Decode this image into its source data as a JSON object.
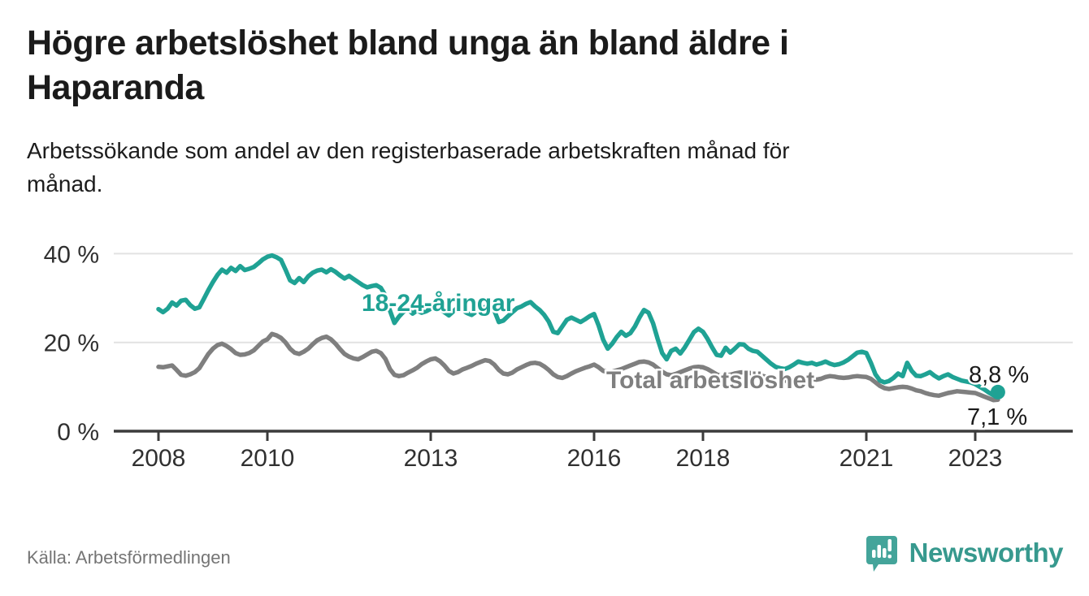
{
  "header": {
    "title": "Högre arbetslöshet bland unga än bland äldre i Haparanda",
    "subtitle": "Arbetssökande som andel av den registerbaserade arbetskraften månad för månad."
  },
  "footer": {
    "source": "Källa: Arbetsförmedlingen",
    "brand": "Newsworthy"
  },
  "colors": {
    "youth_line": "#1fa294",
    "total_line": "#7f7f7f",
    "axis": "#3b3b3b",
    "gridline": "#e2e2e2",
    "value_label": "#1a1a1a",
    "logo_teal": "#44a49a",
    "brand_text_teal": "#37998e"
  },
  "chart_data": {
    "type": "line",
    "title": "Högre arbetslöshet bland unga än bland äldre i Haparanda",
    "subtitle": "Arbetssökande som andel av den registerbaserade arbetskraften månad för månad.",
    "frequency": "monthly",
    "start": "2008-01",
    "end": "2023-06",
    "grid": "horizontal",
    "legend_position": "inline-labels",
    "y_axis": {
      "unit": "%",
      "range": [
        0,
        40
      ],
      "ticks": [
        {
          "value": 40,
          "label": "40 %"
        },
        {
          "value": 20,
          "label": "20 %"
        },
        {
          "value": 0,
          "label": "0 %"
        }
      ]
    },
    "x_axis": {
      "ticks": [
        {
          "year": 2008,
          "label": "2008"
        },
        {
          "year": 2010,
          "label": "2010"
        },
        {
          "year": 2013,
          "label": "2013"
        },
        {
          "year": 2016,
          "label": "2016"
        },
        {
          "year": 2018,
          "label": "2018"
        },
        {
          "year": 2021,
          "label": "2021"
        },
        {
          "year": 2023,
          "label": "2023"
        }
      ]
    },
    "series": [
      {
        "name": "Total arbetslöshet",
        "color": "#7f7f7f",
        "end_label": "7,1 %",
        "end_value": 7.1,
        "values": [
          14.5,
          14.4,
          14.6,
          14.8,
          13.8,
          12.7,
          12.5,
          12.8,
          13.3,
          14.2,
          15.8,
          17.4,
          18.6,
          19.4,
          19.7,
          19.2,
          18.5,
          17.6,
          17.2,
          17.3,
          17.6,
          18.2,
          19.2,
          20.2,
          20.7,
          21.9,
          21.6,
          21.0,
          20.0,
          18.6,
          17.7,
          17.4,
          17.9,
          18.6,
          19.6,
          20.5,
          21.0,
          21.3,
          20.7,
          19.7,
          18.5,
          17.4,
          16.8,
          16.4,
          16.2,
          16.7,
          17.3,
          17.9,
          18.1,
          17.6,
          16.3,
          14.0,
          12.7,
          12.4,
          12.6,
          13.2,
          13.7,
          14.3,
          15.1,
          15.7,
          16.2,
          16.4,
          15.8,
          14.8,
          13.6,
          13.0,
          13.3,
          13.9,
          14.3,
          14.7,
          15.2,
          15.6,
          16.0,
          15.8,
          15.0,
          13.8,
          13.0,
          12.8,
          13.2,
          13.9,
          14.4,
          14.9,
          15.3,
          15.4,
          15.2,
          14.6,
          13.8,
          12.8,
          12.2,
          12.0,
          12.4,
          13.0,
          13.5,
          13.9,
          14.3,
          14.6,
          15.0,
          14.4,
          13.6,
          13.3,
          13.4,
          13.7,
          14.0,
          14.4,
          14.8,
          15.2,
          15.6,
          15.7,
          15.5,
          15.0,
          14.2,
          13.4,
          12.8,
          12.6,
          12.9,
          13.3,
          13.7,
          14.1,
          14.4,
          14.5,
          14.4,
          14.0,
          13.4,
          12.8,
          12.4,
          12.5,
          12.7,
          13.0,
          13.2,
          13.3,
          13.2,
          13.0,
          12.8,
          12.5,
          12.2,
          11.9,
          11.6,
          11.5,
          11.4,
          11.3,
          11.4,
          11.6,
          11.8,
          11.9,
          11.8,
          11.6,
          11.8,
          12.2,
          12.4,
          12.3,
          12.1,
          12.0,
          12.1,
          12.3,
          12.4,
          12.3,
          12.2,
          11.8,
          11.0,
          10.2,
          9.7,
          9.5,
          9.7,
          9.9,
          10.0,
          9.9,
          9.6,
          9.2,
          9.0,
          8.6,
          8.3,
          8.1,
          8.0,
          8.3,
          8.6,
          8.8,
          9.0,
          8.9,
          8.8,
          8.7,
          8.6,
          8.2,
          7.8,
          7.4,
          7.0,
          7.1
        ]
      },
      {
        "name": "18-24-åringar",
        "color": "#1fa294",
        "end_label": "8,8 %",
        "end_value": 8.8,
        "values": [
          27.5,
          26.8,
          27.6,
          29.0,
          28.3,
          29.4,
          29.6,
          28.4,
          27.6,
          27.9,
          29.8,
          31.8,
          33.6,
          35.2,
          36.4,
          35.7,
          36.8,
          36.1,
          37.2,
          36.3,
          36.6,
          37.0,
          37.8,
          38.7,
          39.3,
          39.6,
          39.2,
          38.6,
          36.4,
          34.0,
          33.4,
          34.5,
          33.6,
          34.9,
          35.7,
          36.2,
          36.4,
          35.8,
          36.5,
          35.9,
          35.1,
          34.4,
          35.0,
          34.3,
          33.6,
          32.9,
          32.4,
          32.7,
          32.9,
          32.3,
          30.6,
          27.2,
          24.4,
          25.8,
          26.9,
          27.4,
          26.5,
          27.2,
          26.7,
          27.0,
          27.6,
          28.1,
          27.5,
          26.8,
          26.1,
          27.0,
          27.9,
          27.3,
          26.6,
          26.2,
          26.9,
          27.5,
          28.0,
          28.3,
          27.2,
          24.6,
          24.9,
          25.9,
          26.8,
          27.7,
          28.1,
          28.7,
          29.1,
          28.1,
          27.3,
          26.2,
          24.7,
          22.4,
          22.1,
          23.6,
          25.1,
          25.6,
          25.1,
          24.6,
          25.2,
          25.9,
          26.4,
          23.8,
          20.6,
          18.6,
          19.7,
          21.2,
          22.4,
          21.5,
          22.1,
          23.6,
          25.6,
          27.3,
          26.7,
          24.3,
          20.8,
          17.6,
          16.2,
          18.1,
          18.6,
          17.5,
          18.9,
          20.6,
          22.3,
          23.1,
          22.4,
          20.8,
          18.9,
          17.2,
          17.0,
          18.8,
          17.7,
          18.6,
          19.6,
          19.5,
          18.6,
          18.1,
          17.9,
          17.0,
          16.1,
          15.2,
          14.5,
          14.2,
          14.0,
          14.4,
          15.0,
          15.7,
          15.4,
          15.2,
          15.4,
          15.0,
          15.3,
          15.7,
          15.2,
          14.9,
          15.1,
          15.5,
          16.1,
          16.9,
          17.7,
          17.9,
          17.6,
          15.4,
          12.8,
          11.4,
          11.0,
          11.3,
          12.0,
          13.0,
          12.4,
          15.4,
          13.6,
          12.5,
          12.4,
          12.8,
          13.3,
          12.5,
          11.9,
          12.4,
          12.8,
          12.2,
          11.8,
          11.4,
          11.2,
          11.0,
          10.6,
          10.0,
          9.4,
          8.7,
          8.1,
          8.8
        ]
      }
    ]
  }
}
